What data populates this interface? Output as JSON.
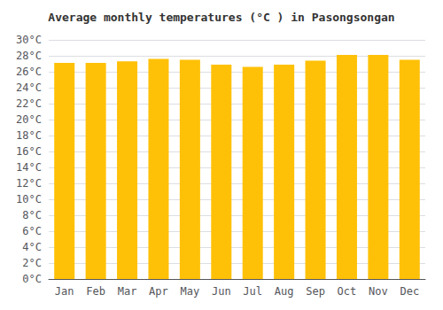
{
  "chart_data": {
    "type": "bar",
    "title": "Average monthly temperatures (°C ) in Pasongsongan",
    "categories": [
      "Jan",
      "Feb",
      "Mar",
      "Apr",
      "May",
      "Jun",
      "Jul",
      "Aug",
      "Sep",
      "Oct",
      "Nov",
      "Dec"
    ],
    "values": [
      27.1,
      27.1,
      27.3,
      27.6,
      27.5,
      26.9,
      26.6,
      26.9,
      27.4,
      28.1,
      28.1,
      27.5
    ],
    "color": "#FFC107",
    "ylim": [
      0,
      30
    ],
    "yticks": [
      {
        "value": 0,
        "label": "0°C"
      },
      {
        "value": 2,
        "label": "2°C"
      },
      {
        "value": 4,
        "label": "4°C"
      },
      {
        "value": 6,
        "label": "6°C"
      },
      {
        "value": 8,
        "label": "8°C"
      },
      {
        "value": 10,
        "label": "10°C"
      },
      {
        "value": 12,
        "label": "12°C"
      },
      {
        "value": 14,
        "label": "14°C"
      },
      {
        "value": 16,
        "label": "16°C"
      },
      {
        "value": 18,
        "label": "18°C"
      },
      {
        "value": 20,
        "label": "20°C"
      },
      {
        "value": 22,
        "label": "22°C"
      },
      {
        "value": 24,
        "label": "24°C"
      },
      {
        "value": 26,
        "label": "26°C"
      },
      {
        "value": 28,
        "label": "28°C"
      },
      {
        "value": 30,
        "label": "30°C"
      }
    ],
    "grid": true
  }
}
